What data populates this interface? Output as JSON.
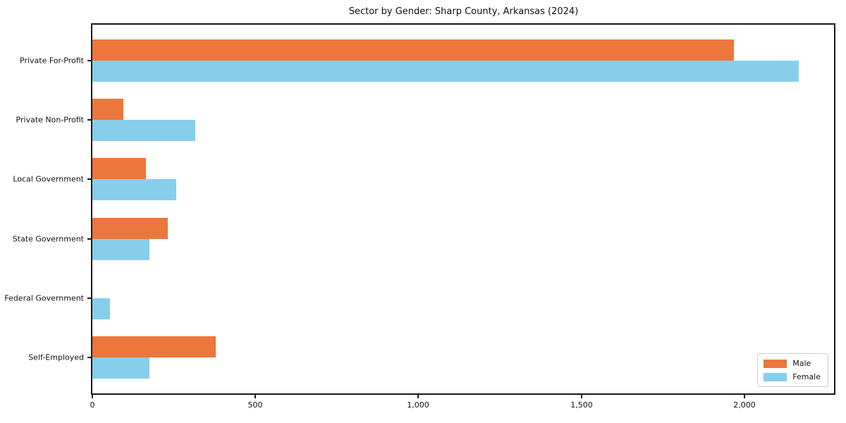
{
  "title": "Sector by Gender: Sharp County, Arkansas (2024)",
  "colors": {
    "male_bar": "#ec763c",
    "female_bar": "#87ceeb",
    "axis": "#1a1a1a",
    "legend_border": "#cccccc",
    "background": "#ffffff"
  },
  "legend": {
    "items": [
      {
        "label": "Male",
        "color": "#ec763c"
      },
      {
        "label": "Female",
        "color": "#87ceeb"
      }
    ],
    "position": "lower right"
  },
  "chart_data": {
    "type": "bar",
    "orientation": "horizontal",
    "title": "Sector by Gender: Sharp County, Arkansas (2024)",
    "categories": [
      "Private For-Profit",
      "Private Non-Profit",
      "Local Government",
      "State Government",
      "Federal Government",
      "Self-Employed"
    ],
    "series": [
      {
        "name": "Male",
        "color": "#ec763c",
        "values": [
          1968,
          96,
          165,
          232,
          0,
          378
        ]
      },
      {
        "name": "Female",
        "color": "#87ceeb",
        "values": [
          2166,
          315,
          258,
          176,
          55,
          176
        ]
      }
    ],
    "xlabel": "",
    "ylabel": "",
    "xlim": [
      0,
      2275
    ],
    "xticks": {
      "values": [
        0,
        500,
        1000,
        1500,
        2000
      ],
      "labels": [
        "0",
        "500",
        "1,000",
        "1,500",
        "2,000"
      ]
    },
    "grid": false,
    "legend_position": "lower right"
  }
}
